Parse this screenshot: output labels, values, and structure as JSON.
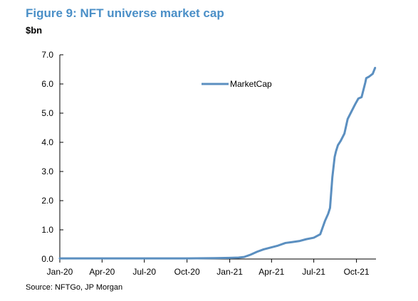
{
  "title": "Figure 9: NFT universe market cap",
  "unit_label": "$bn",
  "source": "Source: NFTGo, JP Morgan",
  "colors": {
    "title": "#4a8fc7",
    "series": "#5b8fc0"
  },
  "chart_data": {
    "type": "line",
    "title": "Figure 9: NFT universe market cap",
    "xlabel": "",
    "ylabel": "$bn",
    "ylim": [
      0,
      7
    ],
    "y_ticks": [
      "0.0",
      "1.0",
      "2.0",
      "3.0",
      "4.0",
      "5.0",
      "6.0",
      "7.0"
    ],
    "x_ticks": [
      "Jan-20",
      "Apr-20",
      "Jul-20",
      "Oct-20",
      "Jan-21",
      "Apr-21",
      "Jul-21",
      "Oct-21"
    ],
    "legend": {
      "entries": [
        "MarketCap"
      ],
      "position": "upper-right"
    },
    "grid": false,
    "series": [
      {
        "name": "MarketCap",
        "color": "#5b8fc0",
        "x": [
          "2020-01-01",
          "2020-04-01",
          "2020-07-01",
          "2020-10-01",
          "2020-12-01",
          "2021-01-01",
          "2021-01-20",
          "2021-02-01",
          "2021-02-15",
          "2021-03-01",
          "2021-03-15",
          "2021-04-01",
          "2021-04-15",
          "2021-05-01",
          "2021-05-15",
          "2021-06-01",
          "2021-06-15",
          "2021-07-01",
          "2021-07-15",
          "2021-07-25",
          "2021-08-01",
          "2021-08-05",
          "2021-08-10",
          "2021-08-15",
          "2021-08-18",
          "2021-08-22",
          "2021-08-28",
          "2021-09-05",
          "2021-09-12",
          "2021-09-20",
          "2021-09-28",
          "2021-10-05",
          "2021-10-12",
          "2021-10-20",
          "2021-10-22",
          "2021-10-28",
          "2021-11-05",
          "2021-11-10"
        ],
        "values": [
          0.02,
          0.02,
          0.02,
          0.02,
          0.03,
          0.04,
          0.05,
          0.07,
          0.15,
          0.25,
          0.33,
          0.4,
          0.46,
          0.55,
          0.58,
          0.62,
          0.68,
          0.73,
          0.85,
          1.3,
          1.55,
          1.75,
          2.8,
          3.5,
          3.7,
          3.9,
          4.05,
          4.3,
          4.8,
          5.05,
          5.3,
          5.5,
          5.55,
          6.05,
          6.2,
          6.25,
          6.35,
          6.55
        ]
      }
    ]
  }
}
